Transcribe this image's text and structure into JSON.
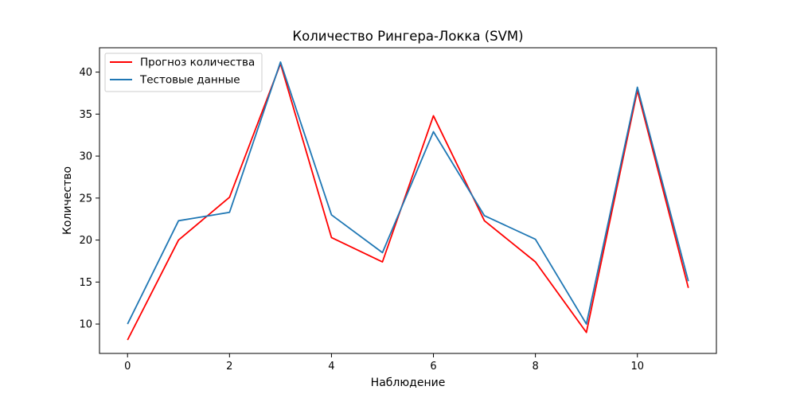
{
  "chart_data": {
    "type": "line",
    "title": "Количество Рингера-Локка  (SVM)",
    "xlabel": "Наблюдение",
    "ylabel": "Количество",
    "xlim": [
      -0.55,
      11.55
    ],
    "ylim": [
      6.5,
      42.9
    ],
    "xticks": [
      0,
      2,
      4,
      6,
      8,
      10
    ],
    "yticks": [
      10,
      15,
      20,
      25,
      30,
      35,
      40
    ],
    "grid": false,
    "legend_position": "top-left",
    "x": [
      0,
      1,
      2,
      3,
      4,
      5,
      6,
      7,
      8,
      9,
      10,
      11
    ],
    "series": [
      {
        "name": "Прогноз количества",
        "color": "#ff0000",
        "values": [
          8.1,
          20.0,
          25.1,
          41.0,
          20.3,
          17.4,
          34.8,
          22.3,
          17.4,
          9.0,
          37.8,
          14.3
        ]
      },
      {
        "name": "Тестовые данные",
        "color": "#1f77b4",
        "values": [
          10.0,
          22.3,
          23.3,
          41.2,
          23.0,
          18.5,
          32.9,
          22.9,
          20.1,
          10.0,
          38.2,
          15.1
        ]
      }
    ]
  }
}
